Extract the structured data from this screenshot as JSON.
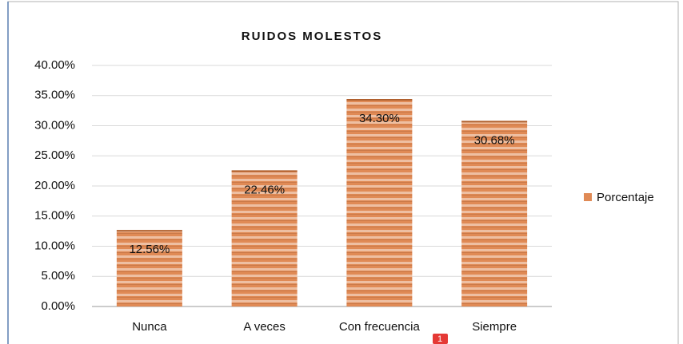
{
  "chart_data": {
    "type": "bar",
    "title": "RUIDOS MOLESTOS",
    "categories": [
      "Nunca",
      "A veces",
      "Con frecuencia",
      "Siempre"
    ],
    "series": [
      {
        "name": "Porcentaje",
        "color": "#e08a55",
        "values": [
          12.56,
          22.46,
          34.3,
          30.68
        ],
        "value_labels": [
          "12.56%",
          "22.46%",
          "34.30%",
          "30.68%"
        ]
      }
    ],
    "ylim": [
      0,
      40
    ],
    "yticks": [
      {
        "value": 0,
        "label": "0.00%"
      },
      {
        "value": 5,
        "label": "5.00%"
      },
      {
        "value": 10,
        "label": "10.00%"
      },
      {
        "value": 15,
        "label": "15.00%"
      },
      {
        "value": 20,
        "label": "20.00%"
      },
      {
        "value": 25,
        "label": "25.00%"
      },
      {
        "value": 30,
        "label": "30.00%"
      },
      {
        "value": 35,
        "label": "35.00%"
      },
      {
        "value": 40,
        "label": "40.00%"
      }
    ],
    "grid": true,
    "legend": "right",
    "annotations": [
      "1"
    ]
  }
}
